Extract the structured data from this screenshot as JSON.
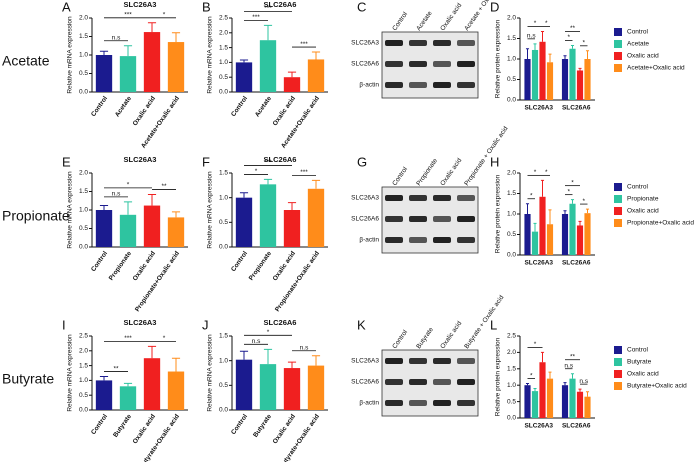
{
  "row_labels": [
    "Acetate",
    "Propionate",
    "Butyrate"
  ],
  "blots": [
    {
      "panel": "C",
      "lanes": [
        "Control",
        "Acetate",
        "Oxalic acid",
        "Acetate + Oxalic acid"
      ],
      "rows": [
        "SLC26A3",
        "SLC26A6",
        "β-actin"
      ]
    },
    {
      "panel": "G",
      "lanes": [
        "Control",
        "Propionate",
        "Oxalic acid",
        "Propionate + Oxalic acid"
      ],
      "rows": [
        "SLC26A3",
        "SLC26A6",
        "β-actin"
      ]
    },
    {
      "panel": "K",
      "lanes": [
        "Control",
        "Butyrate",
        "Oxalic acid",
        "Butyrate + Oxalic acid"
      ],
      "rows": [
        "SLC26A3",
        "SLC26A6",
        "β-actin"
      ]
    }
  ],
  "chart_data": [
    {
      "type": "bar",
      "panel": "A",
      "title": "SLC26A3",
      "ylabel": "Relative mRNA expression",
      "categories": [
        "Control",
        "Acetate",
        "Oxalic acid",
        "Acetate+Oxalic acid"
      ],
      "values": [
        1.0,
        0.97,
        1.62,
        1.35
      ],
      "errors": [
        0.1,
        0.28,
        0.25,
        0.25
      ],
      "colors": [
        "#1b1b8f",
        "#2ec4a0",
        "#f02020",
        "#ff8c1a"
      ],
      "ylim": [
        0,
        2
      ],
      "yticks": [
        {
          "value": 0,
          "label": "0.0"
        },
        0.5,
        {
          "value": 1,
          "label": "1.0"
        },
        1.5,
        {
          "value": 2,
          "label": "2.0"
        }
      ],
      "brackets": [
        {
          "between": [
            "Control",
            "Acetate"
          ],
          "label": "n.s"
        },
        {
          "between": [
            "Oxalic acid",
            "Acetate+Oxalic acid"
          ],
          "label": "*"
        },
        {
          "between": [
            "Control",
            "Oxalic acid"
          ],
          "label": "***"
        }
      ]
    },
    {
      "type": "bar",
      "panel": "B",
      "title": "SLC26A6",
      "ylabel": "Relative mRNA expression",
      "categories": [
        "Control",
        "Acetate",
        "Oxalic acid",
        "Acetate+Oxalic acid"
      ],
      "values": [
        1.0,
        1.75,
        0.5,
        1.1
      ],
      "errors": [
        0.08,
        0.5,
        0.17,
        0.25
      ],
      "colors": [
        "#1b1b8f",
        "#2ec4a0",
        "#f02020",
        "#ff8c1a"
      ],
      "ylim": [
        0,
        2.5
      ],
      "yticks": [
        {
          "value": 0,
          "label": "0.0"
        },
        0.5,
        {
          "value": 1,
          "label": "1.0"
        },
        1.5,
        {
          "value": 2,
          "label": "2.0"
        },
        2.5
      ],
      "brackets": [
        {
          "between": [
            "Control",
            "Acetate"
          ],
          "label": "***"
        },
        {
          "between": [
            "Oxalic acid",
            "Acetate+Oxalic acid"
          ],
          "label": "***"
        },
        {
          "between": [
            "Control",
            "Oxalic acid"
          ],
          "label": "***"
        }
      ]
    },
    {
      "type": "grouped-bar",
      "panel": "D",
      "ylabel": "Relative protein expression",
      "categories": [
        "SLC26A3",
        "SLC26A6"
      ],
      "series": [
        {
          "name": "Control",
          "color": "#1b1b8f",
          "values": [
            1,
            1
          ],
          "errors": [
            0.25,
            0.08
          ]
        },
        {
          "name": "Acetate",
          "color": "#2ec4a0",
          "values": [
            1.22,
            1.25
          ],
          "errors": [
            0.15,
            0.08
          ]
        },
        {
          "name": "Oxalic acid",
          "color": "#f02020",
          "values": [
            1.42,
            0.72
          ],
          "errors": [
            0.25,
            0.05
          ]
        },
        {
          "name": "Acetate+Oxalic acid",
          "color": "#ff8c1a",
          "values": [
            0.92,
            1.0
          ],
          "errors": [
            0.2,
            0.2
          ]
        }
      ],
      "ylim": [
        0,
        2
      ],
      "yticks": [
        {
          "value": 0,
          "label": "0.0"
        },
        0.5,
        {
          "value": 1,
          "label": "1.0"
        },
        1.5,
        {
          "value": 2,
          "label": "2.0"
        }
      ],
      "brackets": [
        {
          "category": "SLC26A3",
          "between": [
            "Control",
            "Acetate"
          ],
          "label": "n.s"
        },
        {
          "category": "SLC26A3",
          "between": [
            "Oxalic acid",
            "Acetate+Oxalic acid"
          ],
          "label": "*"
        },
        {
          "category": "SLC26A3",
          "between": [
            "Control",
            "Oxalic acid"
          ],
          "label": "*"
        },
        {
          "category": "SLC26A6",
          "between": [
            "Control",
            "Acetate"
          ],
          "label": "*"
        },
        {
          "category": "SLC26A6",
          "between": [
            "Oxalic acid",
            "Acetate+Oxalic acid"
          ],
          "label": "*"
        },
        {
          "category": "SLC26A6",
          "between": [
            "Control",
            "Oxalic acid"
          ],
          "label": "**"
        }
      ]
    },
    {
      "type": "bar",
      "panel": "E",
      "title": "SLC26A3",
      "ylabel": "Relative mRNA expression",
      "categories": [
        "Control",
        "Propionate",
        "Oxalic acid",
        "Propionate+Oxalic acid"
      ],
      "values": [
        1.0,
        0.87,
        1.12,
        0.8
      ],
      "errors": [
        0.12,
        0.35,
        0.3,
        0.15
      ],
      "colors": [
        "#1b1b8f",
        "#2ec4a0",
        "#f02020",
        "#ff8c1a"
      ],
      "ylim": [
        0,
        2
      ],
      "yticks": [
        {
          "value": 0,
          "label": "0.0"
        },
        0.5,
        {
          "value": 1,
          "label": "1.0"
        },
        1.5,
        {
          "value": 2,
          "label": "2.0"
        }
      ],
      "brackets": [
        {
          "between": [
            "Control",
            "Propionate"
          ],
          "label": "n.s"
        },
        {
          "between": [
            "Oxalic acid",
            "Propionate+Oxalic acid"
          ],
          "label": "**"
        },
        {
          "between": [
            "Control",
            "Oxalic acid"
          ],
          "label": "*"
        }
      ]
    },
    {
      "type": "bar",
      "panel": "F",
      "title": "SLC26A6",
      "ylabel": "Relative mRNA expression",
      "categories": [
        "Control",
        "Propionate",
        "Oxalic acid",
        "Propionate+Oxalic acid"
      ],
      "values": [
        1.0,
        1.27,
        0.75,
        1.18
      ],
      "errors": [
        0.1,
        0.1,
        0.15,
        0.17
      ],
      "colors": [
        "#1b1b8f",
        "#2ec4a0",
        "#f02020",
        "#ff8c1a"
      ],
      "ylim": [
        0,
        1.5
      ],
      "yticks": [
        {
          "value": 0,
          "label": "0.0"
        },
        0.5,
        {
          "value": 1,
          "label": "1.0"
        },
        1.5
      ],
      "brackets": [
        {
          "between": [
            "Control",
            "Propionate"
          ],
          "label": "*"
        },
        {
          "between": [
            "Oxalic acid",
            "Propionate+Oxalic acid"
          ],
          "label": "***"
        },
        {
          "between": [
            "Control",
            "Oxalic acid"
          ],
          "label": "***"
        }
      ]
    },
    {
      "type": "grouped-bar",
      "panel": "H",
      "ylabel": "Relative protein expression",
      "categories": [
        "SLC26A3",
        "SLC26A6"
      ],
      "series": [
        {
          "name": "Control",
          "color": "#1b1b8f",
          "values": [
            1,
            1
          ],
          "errors": [
            0.25,
            0.08
          ]
        },
        {
          "name": "Propionate",
          "color": "#2ec4a0",
          "values": [
            0.57,
            1.25
          ],
          "errors": [
            0.2,
            0.1
          ]
        },
        {
          "name": "Oxalic acid",
          "color": "#f02020",
          "values": [
            1.42,
            0.72
          ],
          "errors": [
            0.4,
            0.1
          ]
        },
        {
          "name": "Propionate+Oxalic acid",
          "color": "#ff8c1a",
          "values": [
            0.75,
            1.02
          ],
          "errors": [
            0.35,
            0.1
          ]
        }
      ],
      "ylim": [
        0,
        2
      ],
      "yticks": [
        {
          "value": 0,
          "label": "0.0"
        },
        0.5,
        {
          "value": 1,
          "label": "1.0"
        },
        1.5,
        {
          "value": 2,
          "label": "2.0"
        }
      ],
      "brackets": [
        {
          "category": "SLC26A3",
          "between": [
            "Control",
            "Propionate"
          ],
          "label": "*"
        },
        {
          "category": "SLC26A3",
          "between": [
            "Oxalic acid",
            "Propionate+Oxalic acid"
          ],
          "label": "*"
        },
        {
          "category": "SLC26A3",
          "between": [
            "Control",
            "Oxalic acid"
          ],
          "label": "*"
        },
        {
          "category": "SLC26A6",
          "between": [
            "Control",
            "Propionate"
          ],
          "label": "*"
        },
        {
          "category": "SLC26A6",
          "between": [
            "Oxalic acid",
            "Propionate+Oxalic acid"
          ],
          "label": "*"
        },
        {
          "category": "SLC26A6",
          "between": [
            "Control",
            "Oxalic acid"
          ],
          "label": "*"
        }
      ]
    },
    {
      "type": "bar",
      "panel": "I",
      "title": "SLC26A3",
      "ylabel": "Relative mRNA expression",
      "categories": [
        "Control",
        "Butyrate",
        "Oxalic acid",
        "Butyrate+Oxalic acid"
      ],
      "values": [
        1.0,
        0.8,
        1.75,
        1.3
      ],
      "errors": [
        0.13,
        0.1,
        0.4,
        0.45
      ],
      "colors": [
        "#1b1b8f",
        "#2ec4a0",
        "#f02020",
        "#ff8c1a"
      ],
      "ylim": [
        0,
        2.5
      ],
      "yticks": [
        {
          "value": 0,
          "label": "0.0"
        },
        0.5,
        {
          "value": 1,
          "label": "1.0"
        },
        1.5,
        {
          "value": 2,
          "label": "2.0"
        },
        2.5
      ],
      "brackets": [
        {
          "between": [
            "Control",
            "Butyrate"
          ],
          "label": "**"
        },
        {
          "between": [
            "Oxalic acid",
            "Butyrate+Oxalic acid"
          ],
          "label": "*"
        },
        {
          "between": [
            "Control",
            "Oxalic acid"
          ],
          "label": "***"
        }
      ]
    },
    {
      "type": "bar",
      "panel": "J",
      "title": "SLC26A6",
      "ylabel": "Relative mRNA expression",
      "categories": [
        "Control",
        "Butyrate",
        "Oxalic acid",
        "Butyrate+Oxalic acid"
      ],
      "values": [
        1.02,
        0.93,
        0.85,
        0.9
      ],
      "errors": [
        0.17,
        0.3,
        0.12,
        0.2
      ],
      "colors": [
        "#1b1b8f",
        "#2ec4a0",
        "#f02020",
        "#ff8c1a"
      ],
      "ylim": [
        0,
        1.5
      ],
      "yticks": [
        {
          "value": 0,
          "label": "0.0"
        },
        0.5,
        {
          "value": 1,
          "label": "1.0"
        },
        1.5
      ],
      "brackets": [
        {
          "between": [
            "Control",
            "Butyrate"
          ],
          "label": "n.s"
        },
        {
          "between": [
            "Oxalic acid",
            "Butyrate+Oxalic acid"
          ],
          "label": "n.s"
        },
        {
          "between": [
            "Control",
            "Oxalic acid"
          ],
          "label": "*"
        }
      ]
    },
    {
      "type": "grouped-bar",
      "panel": "L",
      "ylabel": "Relative protein expression",
      "categories": [
        "SLC26A3",
        "SLC26A6"
      ],
      "series": [
        {
          "name": "Control",
          "color": "#1b1b8f",
          "values": [
            1,
            1
          ],
          "errors": [
            0.05,
            0.08
          ]
        },
        {
          "name": "Butyrate",
          "color": "#2ec4a0",
          "values": [
            0.82,
            1.2
          ],
          "errors": [
            0.08,
            0.15
          ]
        },
        {
          "name": "Oxalic acid",
          "color": "#f02020",
          "values": [
            1.7,
            0.8
          ],
          "errors": [
            0.3,
            0.08
          ]
        },
        {
          "name": "Butyrate+Oxalic acid",
          "color": "#ff8c1a",
          "values": [
            1.2,
            0.65
          ],
          "errors": [
            0.2,
            0.15
          ]
        }
      ],
      "ylim": [
        0,
        2.5
      ],
      "yticks": [
        {
          "value": 0,
          "label": "0.0"
        },
        0.5,
        {
          "value": 1,
          "label": "1.0"
        },
        1.5,
        {
          "value": 2,
          "label": "2.0"
        },
        2.5
      ],
      "brackets": [
        {
          "category": "SLC26A3",
          "between": [
            "Control",
            "Butyrate"
          ],
          "label": "*"
        },
        {
          "category": "SLC26A3",
          "between": [
            "Control",
            "Oxalic acid"
          ],
          "label": "*"
        },
        {
          "category": "SLC26A6",
          "between": [
            "Control",
            "Butyrate"
          ],
          "label": "n.s"
        },
        {
          "category": "SLC26A6",
          "between": [
            "Oxalic acid",
            "Butyrate+Oxalic acid"
          ],
          "label": "n.s"
        },
        {
          "category": "SLC26A6",
          "between": [
            "Control",
            "Oxalic acid"
          ],
          "label": "**"
        }
      ]
    }
  ]
}
